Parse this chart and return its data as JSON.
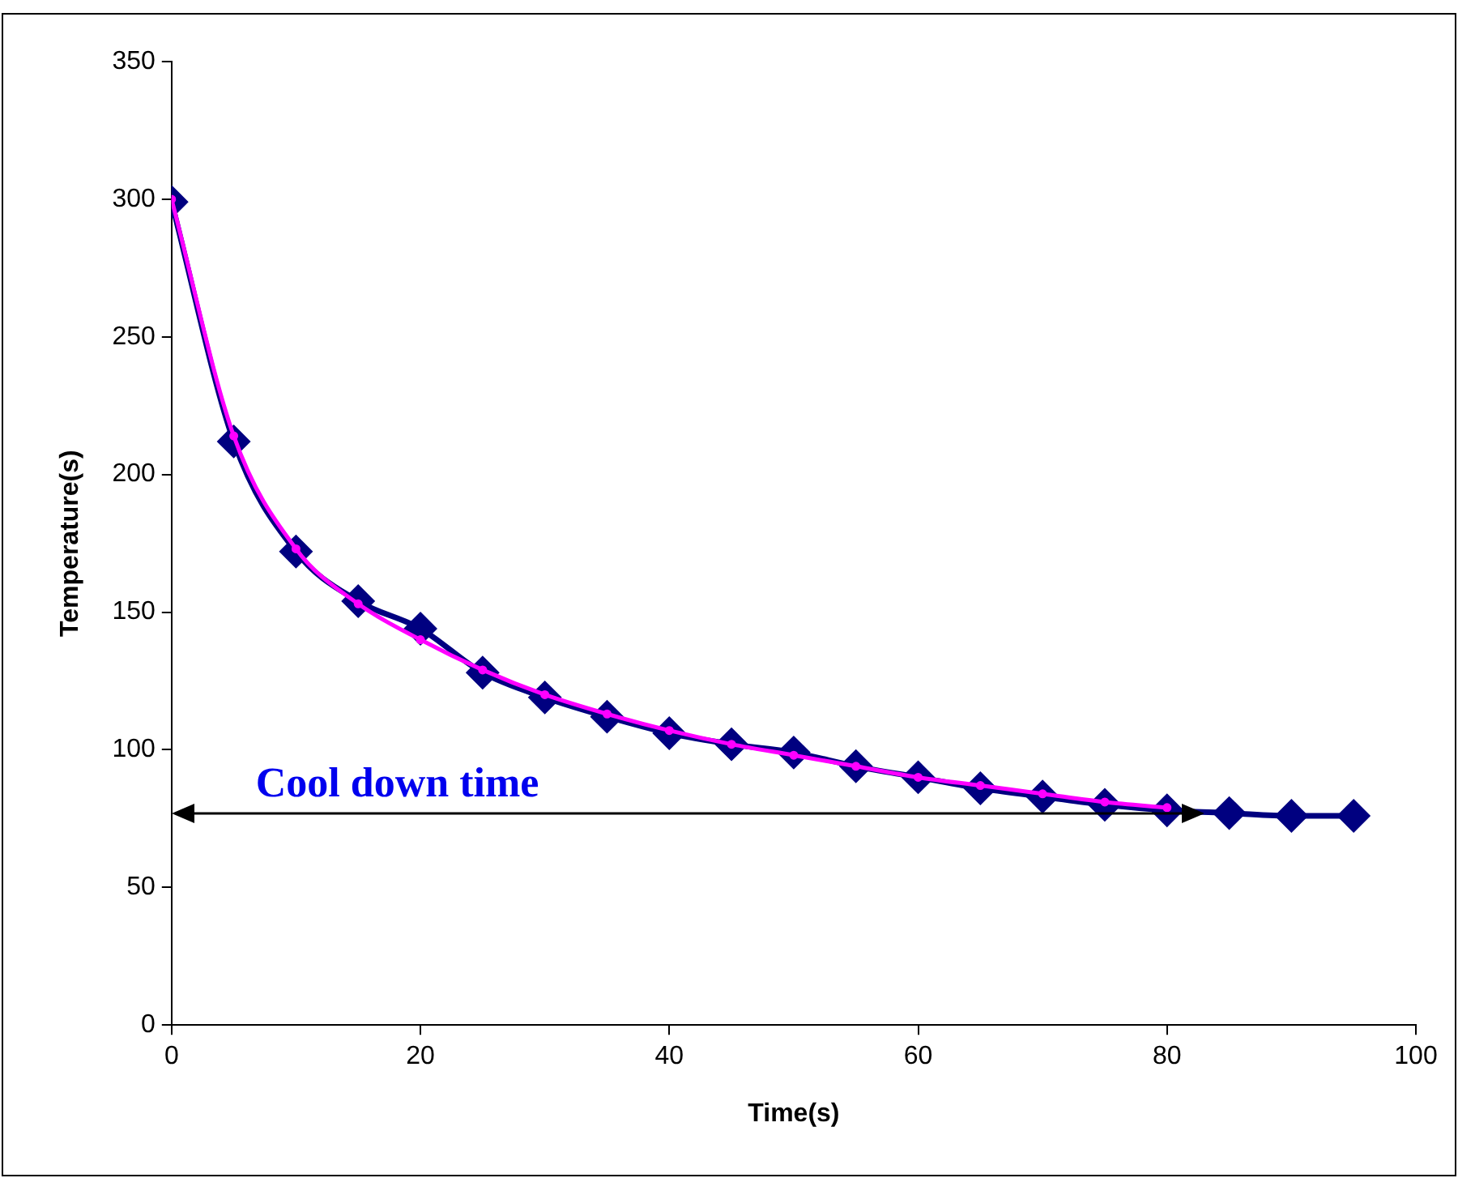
{
  "chart_data": {
    "type": "line",
    "xlabel": "Time(s)",
    "ylabel": "Temperature(s)",
    "xlim": [
      0,
      100
    ],
    "xticks": [
      0,
      20,
      40,
      60,
      80,
      100
    ],
    "ylim": [
      0,
      350
    ],
    "yticks": [
      0,
      50,
      100,
      150,
      200,
      250,
      300,
      350
    ],
    "grid": false,
    "legend": false,
    "marker": "diamond",
    "line_style": "solid",
    "series": [
      {
        "color": "#000080",
        "x": [
          0,
          5,
          10,
          15,
          20,
          25,
          30,
          35,
          40,
          45,
          50,
          55,
          60,
          65,
          70,
          75,
          80,
          85,
          90,
          95
        ],
        "values": [
          299,
          212,
          172,
          154,
          144,
          128,
          119,
          112,
          106,
          102,
          99,
          94,
          90,
          86,
          83,
          80,
          78,
          77,
          76,
          76
        ]
      },
      {
        "type": "line",
        "color": "#ff00ff",
        "marker": "circle",
        "x": [
          0,
          5,
          10,
          15,
          20,
          25,
          30,
          35,
          40,
          45,
          50,
          55,
          60,
          65,
          70,
          75,
          80
        ],
        "values": [
          300,
          214,
          173,
          153,
          140,
          129,
          120,
          113,
          107,
          102,
          98,
          94,
          90,
          87,
          84,
          81,
          79
        ]
      }
    ],
    "annotations": [
      "Cool down time"
    ]
  }
}
